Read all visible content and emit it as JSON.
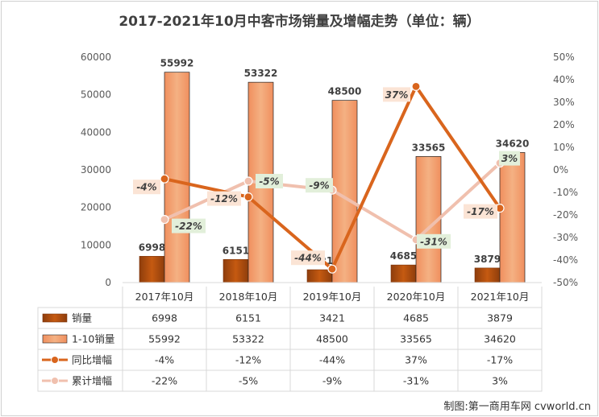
{
  "title": "2017-2021年10月中客市场销量及增幅走势（单位：辆）",
  "source": "制图:第一商用车网 cvworld.cn",
  "colors": {
    "sales": "#c55a11",
    "cumulative_sales": "#f4b183",
    "yoy": "#d9651d",
    "cumulative_growth": "#f0c0ae",
    "pct_label_bg_orange": "#fbe4d5",
    "pct_label_bg_green": "#e2efda"
  },
  "chart_data": {
    "type": "bar",
    "combo": "bar+line with data table",
    "title": "2017-2021年10月中客市场销量及增幅走势（单位：辆）",
    "categories": [
      "2017年10月",
      "2018年10月",
      "2019年10月",
      "2020年10月",
      "2021年10月"
    ],
    "y_left": {
      "range": [
        0,
        60000
      ],
      "ticks": [
        "0",
        "10000",
        "20000",
        "30000",
        "40000",
        "50000",
        "60000"
      ]
    },
    "y_right": {
      "range": [
        -50,
        50
      ],
      "ticks": [
        "50%",
        "40%",
        "30%",
        "20%",
        "10%",
        "0%",
        "-10%",
        "-20%",
        "-30%",
        "-40%",
        "-50%"
      ]
    },
    "grid": false,
    "legend": "data table",
    "series": [
      {
        "name": "销量",
        "type": "bar",
        "axis": "left",
        "values": [
          6998,
          6151,
          3421,
          4685,
          3879
        ],
        "labels": [
          "6998",
          "6151",
          "3421",
          "4685",
          "3879"
        ]
      },
      {
        "name": "1-10销量",
        "type": "bar",
        "axis": "left",
        "values": [
          55992,
          53322,
          48500,
          33565,
          34620
        ],
        "labels": [
          "55992",
          "53322",
          "48500",
          "33565",
          "34620"
        ]
      },
      {
        "name": "同比增幅",
        "type": "line",
        "axis": "right",
        "values": [
          -4,
          -12,
          -44,
          37,
          -17
        ],
        "labels": [
          "-4%",
          "-12%",
          "-44%",
          "37%",
          "-17%"
        ]
      },
      {
        "name": "累计增幅",
        "type": "line",
        "axis": "right",
        "values": [
          -22,
          -5,
          -9,
          -31,
          3
        ],
        "labels": [
          "-22%",
          "-5%",
          "-9%",
          "-31%",
          "3%"
        ]
      }
    ]
  }
}
